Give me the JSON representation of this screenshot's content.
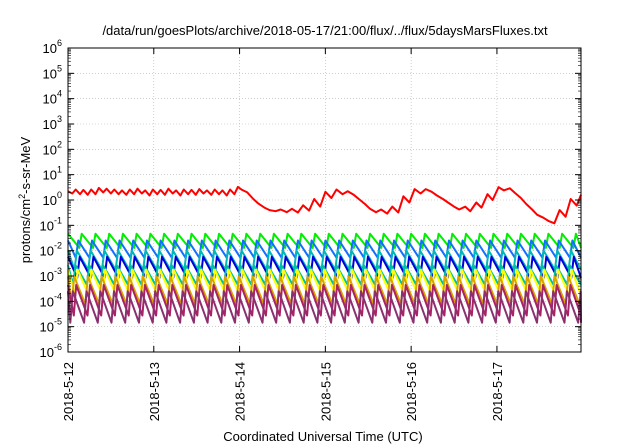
{
  "chart_data": {
    "type": "line",
    "title": "/data/run/goesPlots/archive/2018-05-17/21:00/flux/../flux/5daysMarsFluxes.txt",
    "xlabel": "Coordinated Universal Time (UTC)",
    "ylabel": "protons/cm2-s-sr-MeV",
    "ylabel_parts": {
      "base": "protons/cm",
      "sup": "2",
      "rest": "-s-sr-MeV"
    },
    "yscale": "log",
    "ylim": [
      1e-06,
      1000000.0
    ],
    "xlim": [
      0,
      5.98
    ],
    "grid": true,
    "x_unit": "days since 2018-5-12 00:00 UTC",
    "x_ticks": [
      {
        "value": 0,
        "label": "2018-5-12"
      },
      {
        "value": 1,
        "label": "2018-5-13"
      },
      {
        "value": 2,
        "label": "2018-5-14"
      },
      {
        "value": 3,
        "label": "2018-5-15"
      },
      {
        "value": 4,
        "label": "2018-5-16"
      },
      {
        "value": 5,
        "label": "2018-5-17"
      }
    ],
    "y_ticks": [
      {
        "value": 1e-06,
        "base": "10",
        "exp": "-6"
      },
      {
        "value": 1e-05,
        "base": "10",
        "exp": "-5"
      },
      {
        "value": 0.0001,
        "base": "10",
        "exp": "-4"
      },
      {
        "value": 0.001,
        "base": "10",
        "exp": "-3"
      },
      {
        "value": 0.01,
        "base": "10",
        "exp": "-2"
      },
      {
        "value": 0.1,
        "base": "10",
        "exp": "-1"
      },
      {
        "value": 1,
        "base": "10",
        "exp": "0"
      },
      {
        "value": 10,
        "base": "10",
        "exp": "1"
      },
      {
        "value": 100,
        "base": "10",
        "exp": "2"
      },
      {
        "value": 1000,
        "base": "10",
        "exp": "3"
      },
      {
        "value": 10000,
        "base": "10",
        "exp": "4"
      },
      {
        "value": 100000,
        "base": "10",
        "exp": "5"
      },
      {
        "value": 1000000,
        "base": "10",
        "exp": "6"
      }
    ],
    "series": [
      {
        "color": "#ff0000",
        "x": [
          0.0,
          0.05,
          0.09,
          0.14,
          0.18,
          0.23,
          0.27,
          0.32,
          0.36,
          0.41,
          0.45,
          0.5,
          0.54,
          0.59,
          0.63,
          0.68,
          0.72,
          0.77,
          0.81,
          0.86,
          0.9,
          0.95,
          0.99,
          1.04,
          1.08,
          1.13,
          1.17,
          1.22,
          1.26,
          1.31,
          1.35,
          1.4,
          1.44,
          1.49,
          1.53,
          1.58,
          1.62,
          1.67,
          1.71,
          1.76,
          1.8,
          1.85,
          1.89,
          1.94,
          1.98,
          2.03,
          2.09,
          2.16,
          2.22,
          2.29,
          2.35,
          2.42,
          2.48,
          2.55,
          2.61,
          2.68,
          2.74,
          2.81,
          2.87,
          2.94,
          3.0,
          3.07,
          3.13,
          3.2,
          3.26,
          3.33,
          3.39,
          3.46,
          3.52,
          3.59,
          3.65,
          3.72,
          3.78,
          3.85,
          3.91,
          3.98,
          4.04,
          4.11,
          4.17,
          4.24,
          4.3,
          4.37,
          4.43,
          4.5,
          4.56,
          4.63,
          4.69,
          4.76,
          4.82,
          4.89,
          4.95,
          5.02,
          5.08,
          5.15,
          5.21,
          5.28,
          5.34,
          5.41,
          5.47,
          5.54,
          5.6,
          5.67,
          5.73,
          5.8,
          5.86,
          5.93,
          5.98
        ],
        "y": [
          2.2,
          1.8,
          2.6,
          1.7,
          2.5,
          1.6,
          2.6,
          1.7,
          3.0,
          2.0,
          2.8,
          1.8,
          2.6,
          1.7,
          2.4,
          1.6,
          2.6,
          1.7,
          2.8,
          1.8,
          2.4,
          1.5,
          2.6,
          1.7,
          2.5,
          1.6,
          2.8,
          1.8,
          2.4,
          1.5,
          2.6,
          1.7,
          2.5,
          1.6,
          2.7,
          1.8,
          2.4,
          1.6,
          2.6,
          1.7,
          2.4,
          1.5,
          2.6,
          1.7,
          3.3,
          2.5,
          2.0,
          1.1,
          0.72,
          0.5,
          0.4,
          0.36,
          0.42,
          0.33,
          0.45,
          0.32,
          0.62,
          0.38,
          1.1,
          0.55,
          2.1,
          1.2,
          2.6,
          1.7,
          2.2,
          1.6,
          1.1,
          0.7,
          0.45,
          0.33,
          0.42,
          0.29,
          0.55,
          0.32,
          1.4,
          0.8,
          2.7,
          1.8,
          2.7,
          2.1,
          1.5,
          1.1,
          0.8,
          0.55,
          0.42,
          0.55,
          0.36,
          0.8,
          0.5,
          1.7,
          1.0,
          3.2,
          2.4,
          2.9,
          1.9,
          1.2,
          0.7,
          0.42,
          0.26,
          0.2,
          0.15,
          0.12,
          0.4,
          0.22,
          1.1,
          0.6,
          1.6
        ]
      },
      {
        "color": "#00ee00",
        "base": 0.0245,
        "amp": 1.9,
        "phase": 0.0
      },
      {
        "color": "#1070ff",
        "base": 0.0115,
        "amp": 2.2,
        "phase": 0.25
      },
      {
        "color": "#00b8b8",
        "base": 0.0042,
        "amp": 2.4,
        "phase": 0.35
      },
      {
        "color": "#0000dd",
        "base": 0.0022,
        "amp": 2.6,
        "phase": 0.15
      },
      {
        "color": "#00c0a0",
        "base": 0.0011,
        "amp": 2.4,
        "phase": 0.45
      },
      {
        "color": "#ffff00",
        "base": 0.00055,
        "amp": 3.2,
        "phase": 0.3
      },
      {
        "color": "#d9a300",
        "base": 0.00027,
        "amp": 3.5,
        "phase": 0.55
      },
      {
        "color": "#aa2266",
        "base": 0.00011,
        "amp": 4.0,
        "phase": 0.4
      },
      {
        "color": "#8a3070",
        "base": 6e-05,
        "amp": 4.2,
        "phase": 0.65
      }
    ],
    "sawtooth_period_days": 0.16
  }
}
